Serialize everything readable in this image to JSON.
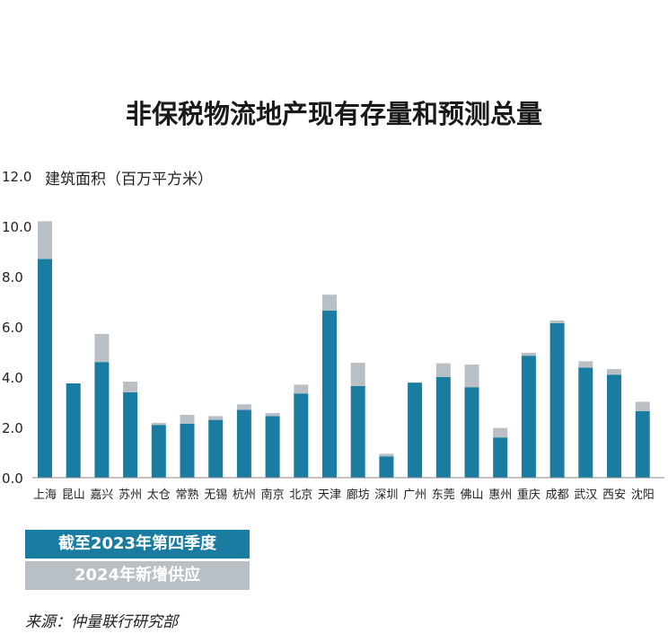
{
  "colors": {
    "current": "#1a7ca0",
    "new": "#b9c0c5"
  },
  "chart_data": {
    "type": "bar",
    "title": "非保税物流地产现有存量和预测总量",
    "ylabel": "建筑面积（百万平方米）",
    "ylim": [
      0,
      12
    ],
    "yticks": [
      "12.0",
      "10.0",
      "8.0",
      "6.0",
      "4.0",
      "2.0",
      "0.0"
    ],
    "stacked": true,
    "legend_position": "bottom-left",
    "categories": [
      "上海",
      "昆山",
      "嘉兴",
      "苏州",
      "太仓",
      "常熟",
      "无锡",
      "杭州",
      "南京",
      "北京",
      "天津",
      "廊坊",
      "深圳",
      "广州",
      "东莞",
      "佛山",
      "惠州",
      "重庆",
      "成都",
      "武汉",
      "西安",
      "沈阳"
    ],
    "series": [
      {
        "name": "截至2023年第四季度",
        "values": [
          8.7,
          3.75,
          4.6,
          3.4,
          2.1,
          2.15,
          2.3,
          2.7,
          2.45,
          3.35,
          6.65,
          3.65,
          0.85,
          3.78,
          4.0,
          3.6,
          1.6,
          4.85,
          6.15,
          4.38,
          4.1,
          2.65
        ]
      },
      {
        "name": "2024年新增供应",
        "values": [
          1.5,
          0,
          1.12,
          0.42,
          0.08,
          0.35,
          0.15,
          0.22,
          0.12,
          0.35,
          0.63,
          0.92,
          0.1,
          0,
          0.55,
          0.9,
          0.38,
          0.12,
          0.1,
          0.25,
          0.22,
          0.37
        ]
      }
    ]
  },
  "source": "来源：仲量联行研究部"
}
